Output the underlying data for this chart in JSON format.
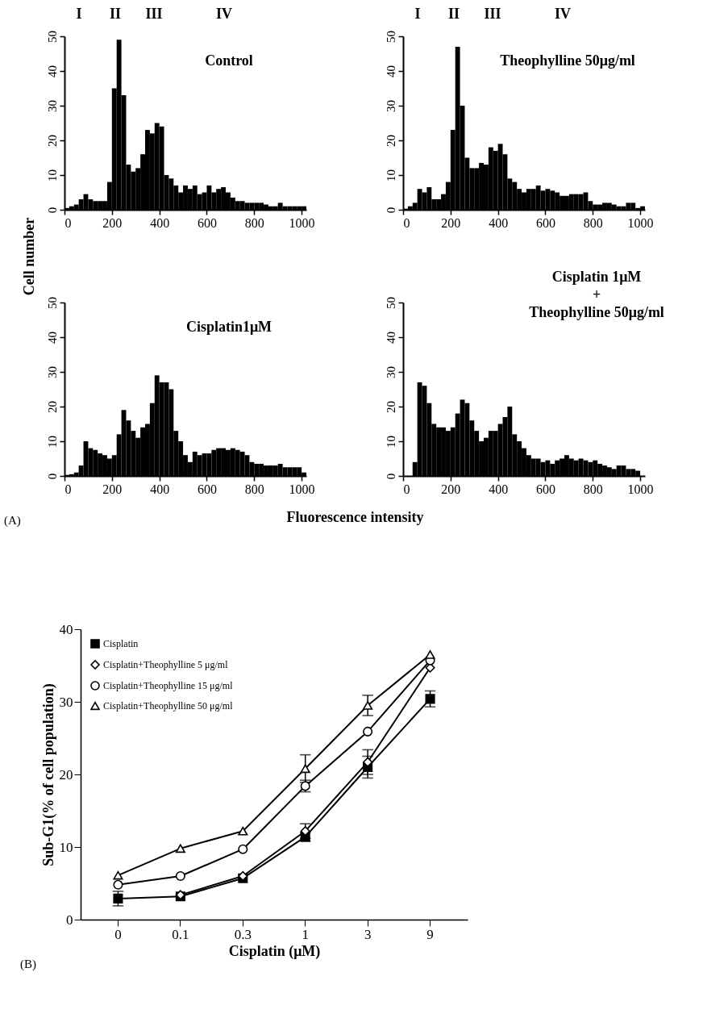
{
  "chart_data": [
    {
      "type": "histogram",
      "title": "Control",
      "ylabel": "Cell number",
      "color": "#000000",
      "xlim": [
        0,
        1020
      ],
      "xticks": [
        0,
        200,
        400,
        600,
        800,
        1000
      ],
      "ylim": [
        0,
        50
      ],
      "yticks": [
        0,
        10,
        20,
        30,
        40,
        50
      ],
      "bins": [
        0,
        20,
        40,
        60,
        80,
        100,
        120,
        140,
        160,
        180,
        200,
        220,
        240,
        260,
        280,
        300,
        320,
        340,
        360,
        380,
        400,
        420,
        440,
        460,
        480,
        500,
        520,
        540,
        560,
        580,
        600,
        620,
        640,
        660,
        680,
        700,
        720,
        740,
        760,
        780,
        800,
        820,
        840,
        860,
        880,
        900,
        920,
        940,
        960,
        980,
        1000,
        1020
      ],
      "values": [
        0.5,
        1,
        1.5,
        3,
        4.5,
        3,
        2.5,
        2.5,
        2.5,
        8,
        35,
        49,
        33,
        13,
        11,
        12,
        16,
        23,
        22,
        25,
        24,
        10,
        9,
        7,
        5,
        7,
        6,
        7,
        4.5,
        5,
        7,
        5,
        6,
        6.5,
        5,
        3.5,
        2.5,
        2.5,
        2,
        2,
        2,
        2,
        1.5,
        1,
        1,
        2,
        1,
        1,
        1,
        1,
        1
      ],
      "annotations": [
        "I",
        "II",
        "III",
        "IV"
      ]
    },
    {
      "type": "histogram",
      "title": "Theophylline 50μg/ml",
      "color": "#000000",
      "xlim": [
        0,
        1020
      ],
      "xticks": [
        0,
        200,
        400,
        600,
        800,
        1000
      ],
      "ylim": [
        0,
        50
      ],
      "yticks": [
        0,
        10,
        20,
        30,
        40,
        50
      ],
      "bins": [
        0,
        20,
        40,
        60,
        80,
        100,
        120,
        140,
        160,
        180,
        200,
        220,
        240,
        260,
        280,
        300,
        320,
        340,
        360,
        380,
        400,
        420,
        440,
        460,
        480,
        500,
        520,
        540,
        560,
        580,
        600,
        620,
        640,
        660,
        680,
        700,
        720,
        740,
        760,
        780,
        800,
        820,
        840,
        860,
        880,
        900,
        920,
        940,
        960,
        980,
        1000,
        1020
      ],
      "values": [
        0.3,
        1,
        2,
        6,
        5,
        6.5,
        3,
        3,
        4.5,
        8,
        23,
        47,
        30,
        15,
        12,
        12,
        13.5,
        13,
        18,
        17,
        19,
        16,
        9,
        8,
        6,
        5,
        6,
        6,
        7,
        5.5,
        6,
        5.5,
        5,
        4,
        4,
        4.5,
        4.5,
        4.5,
        5,
        2.5,
        1.5,
        1.5,
        2,
        2,
        1.5,
        1,
        1,
        2,
        2,
        0.5,
        1
      ],
      "annotations": [
        "I",
        "II",
        "III",
        "IV"
      ]
    },
    {
      "type": "histogram",
      "title": "Cisplatin1μM",
      "xlabel": "Fluorescence intensity",
      "color": "#000000",
      "xlim": [
        0,
        1020
      ],
      "xticks": [
        0,
        200,
        400,
        600,
        800,
        1000
      ],
      "ylim": [
        0,
        50
      ],
      "yticks": [
        0,
        10,
        20,
        30,
        40,
        50
      ],
      "bins": [
        0,
        20,
        40,
        60,
        80,
        100,
        120,
        140,
        160,
        180,
        200,
        220,
        240,
        260,
        280,
        300,
        320,
        340,
        360,
        380,
        400,
        420,
        440,
        460,
        480,
        500,
        520,
        540,
        560,
        580,
        600,
        620,
        640,
        660,
        680,
        700,
        720,
        740,
        760,
        780,
        800,
        820,
        840,
        860,
        880,
        900,
        920,
        940,
        960,
        980,
        1000,
        1020
      ],
      "values": [
        0.3,
        0.5,
        1,
        3,
        10,
        8,
        7.5,
        6.5,
        6,
        5,
        6,
        12,
        19,
        16,
        13,
        11,
        14,
        15,
        21,
        29,
        27,
        27,
        25,
        13,
        10,
        6,
        4,
        7,
        6,
        6.5,
        6.5,
        7.5,
        8,
        8,
        7.5,
        8,
        7.5,
        7,
        6,
        4,
        3.5,
        3.5,
        3,
        3,
        3,
        3.5,
        2.5,
        2.5,
        2.5,
        2.5,
        1
      ],
      "annotations": [
        "(A)"
      ]
    },
    {
      "type": "histogram",
      "title": [
        "Cisplatin 1μM",
        "+",
        "Theophylline 50μg/ml"
      ],
      "color": "#000000",
      "xlim": [
        0,
        1020
      ],
      "xticks": [
        0,
        200,
        400,
        600,
        800,
        1000
      ],
      "ylim": [
        0,
        50
      ],
      "yticks": [
        0,
        10,
        20,
        30,
        40,
        50
      ],
      "bins": [
        0,
        20,
        40,
        60,
        80,
        100,
        120,
        140,
        160,
        180,
        200,
        220,
        240,
        260,
        280,
        300,
        320,
        340,
        360,
        380,
        400,
        420,
        440,
        460,
        480,
        500,
        520,
        540,
        560,
        580,
        600,
        620,
        640,
        660,
        680,
        700,
        720,
        740,
        760,
        780,
        800,
        820,
        840,
        860,
        880,
        900,
        920,
        940,
        960,
        980,
        1000,
        1020
      ],
      "values": [
        0,
        0,
        4,
        27,
        26,
        21,
        15,
        14,
        14,
        13,
        14,
        18,
        22,
        21,
        16,
        13,
        10,
        11,
        13,
        13,
        15,
        17,
        20,
        12,
        10,
        8,
        6,
        5,
        5,
        4,
        4.5,
        3.5,
        4.5,
        5,
        6,
        5,
        4.5,
        5,
        4.5,
        4,
        4.5,
        3.5,
        3,
        2.5,
        2,
        3,
        3,
        2,
        2,
        1.5,
        0
      ]
    },
    {
      "type": "line",
      "xlabel": "Cisplatin (μM)",
      "ylabel": "Sub-G1(% of cell population)",
      "categories": [
        "0",
        "0.1",
        "0.3",
        "1",
        "3",
        "9"
      ],
      "ylim": [
        0,
        40
      ],
      "yticks": [
        0,
        10,
        20,
        30,
        40
      ],
      "legend": "top left",
      "annotations": [
        "(B)"
      ],
      "series": [
        {
          "name": "Cisplatin",
          "color": "#000000",
          "marker": "square",
          "values": [
            2.9,
            3.2,
            5.7,
            11.4,
            21.0,
            30.4
          ],
          "errors": [
            1,
            null,
            null,
            0.6,
            1.5,
            1.1
          ]
        },
        {
          "name": "Cisplatin+Theophylline 5 μg/ml",
          "color": "#000000",
          "marker": "diamond",
          "values": [
            null,
            3.4,
            6.0,
            12.2,
            21.7,
            34.7
          ],
          "errors": [
            null,
            null,
            null,
            1,
            1.7,
            null
          ]
        },
        {
          "name": "Cisplatin+Theophylline 15 μg/ml",
          "color": "#000000",
          "marker": "circle",
          "values": [
            4.8,
            6.0,
            9.7,
            18.4,
            25.9,
            35.7
          ],
          "errors": [
            null,
            null,
            null,
            0.8,
            null,
            null
          ]
        },
        {
          "name": "Cisplatin+Theophylline 50 μg/ml",
          "color": "#000000",
          "marker": "triangle",
          "values": [
            6.1,
            9.8,
            12.2,
            20.8,
            29.5,
            36.5
          ],
          "errors": [
            null,
            null,
            null,
            1.9,
            1.4,
            null
          ]
        }
      ]
    }
  ]
}
